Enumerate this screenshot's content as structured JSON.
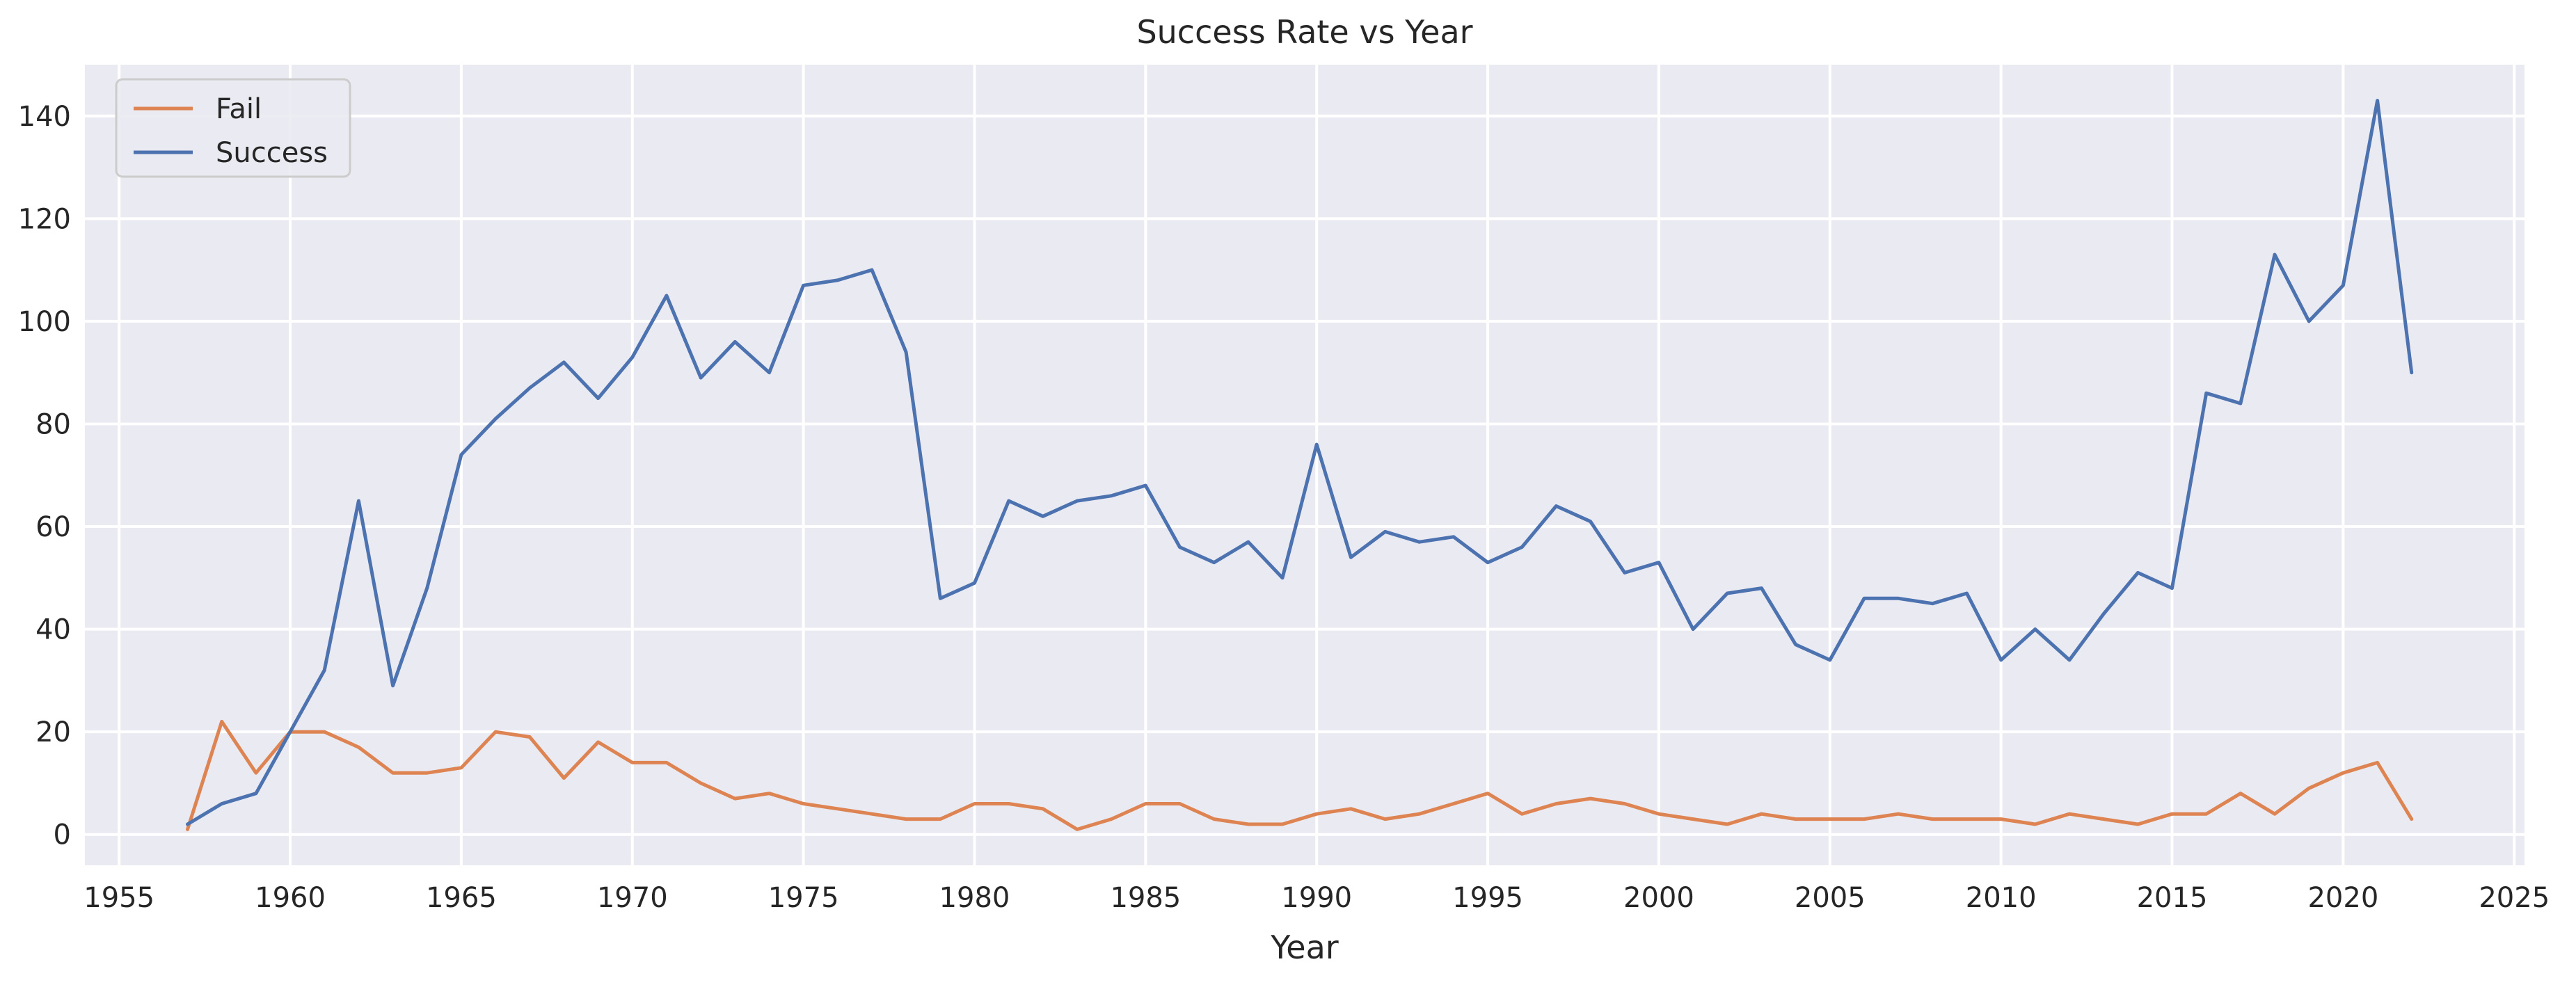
{
  "chart_data": {
    "type": "line",
    "title": "Success Rate vs Year",
    "xlabel": "Year",
    "ylabel": "",
    "xlim": [
      1954,
      2025.3
    ],
    "ylim": [
      -6,
      150
    ],
    "xticks": [
      1955,
      1960,
      1965,
      1970,
      1975,
      1980,
      1985,
      1990,
      1995,
      2000,
      2005,
      2010,
      2015,
      2020,
      2025
    ],
    "yticks": [
      0,
      20,
      40,
      60,
      80,
      100,
      120,
      140
    ],
    "grid": true,
    "legend_position": "top-left",
    "x": [
      1957,
      1958,
      1959,
      1960,
      1961,
      1962,
      1963,
      1964,
      1965,
      1966,
      1967,
      1968,
      1969,
      1970,
      1971,
      1972,
      1973,
      1974,
      1975,
      1976,
      1977,
      1978,
      1979,
      1980,
      1981,
      1982,
      1983,
      1984,
      1985,
      1986,
      1987,
      1988,
      1989,
      1990,
      1991,
      1992,
      1993,
      1994,
      1995,
      1996,
      1997,
      1998,
      1999,
      2000,
      2001,
      2002,
      2003,
      2004,
      2005,
      2006,
      2007,
      2008,
      2009,
      2010,
      2011,
      2012,
      2013,
      2014,
      2015,
      2016,
      2017,
      2018,
      2019,
      2020,
      2021,
      2022
    ],
    "series": [
      {
        "name": "Fail",
        "color": "#dd8452",
        "values": [
          1,
          22,
          12,
          20,
          20,
          17,
          12,
          12,
          13,
          20,
          19,
          11,
          18,
          14,
          14,
          10,
          7,
          8,
          6,
          5,
          4,
          3,
          3,
          6,
          6,
          5,
          1,
          3,
          6,
          6,
          3,
          2,
          2,
          4,
          5,
          3,
          4,
          6,
          8,
          4,
          6,
          7,
          6,
          4,
          3,
          2,
          4,
          3,
          3,
          3,
          4,
          3,
          3,
          3,
          2,
          4,
          3,
          2,
          4,
          4,
          8,
          4,
          9,
          12,
          14,
          3
        ]
      },
      {
        "name": "Success",
        "color": "#4c72b0",
        "values": [
          2,
          6,
          8,
          20,
          32,
          65,
          29,
          48,
          74,
          81,
          87,
          92,
          85,
          93,
          105,
          89,
          96,
          90,
          107,
          108,
          110,
          94,
          46,
          49,
          65,
          62,
          65,
          66,
          68,
          56,
          53,
          57,
          50,
          76,
          54,
          59,
          57,
          58,
          53,
          56,
          64,
          61,
          51,
          53,
          40,
          47,
          48,
          37,
          34,
          46,
          46,
          45,
          47,
          34,
          40,
          34,
          43,
          51,
          48,
          86,
          84,
          113,
          100,
          107,
          143,
          90
        ]
      }
    ]
  }
}
